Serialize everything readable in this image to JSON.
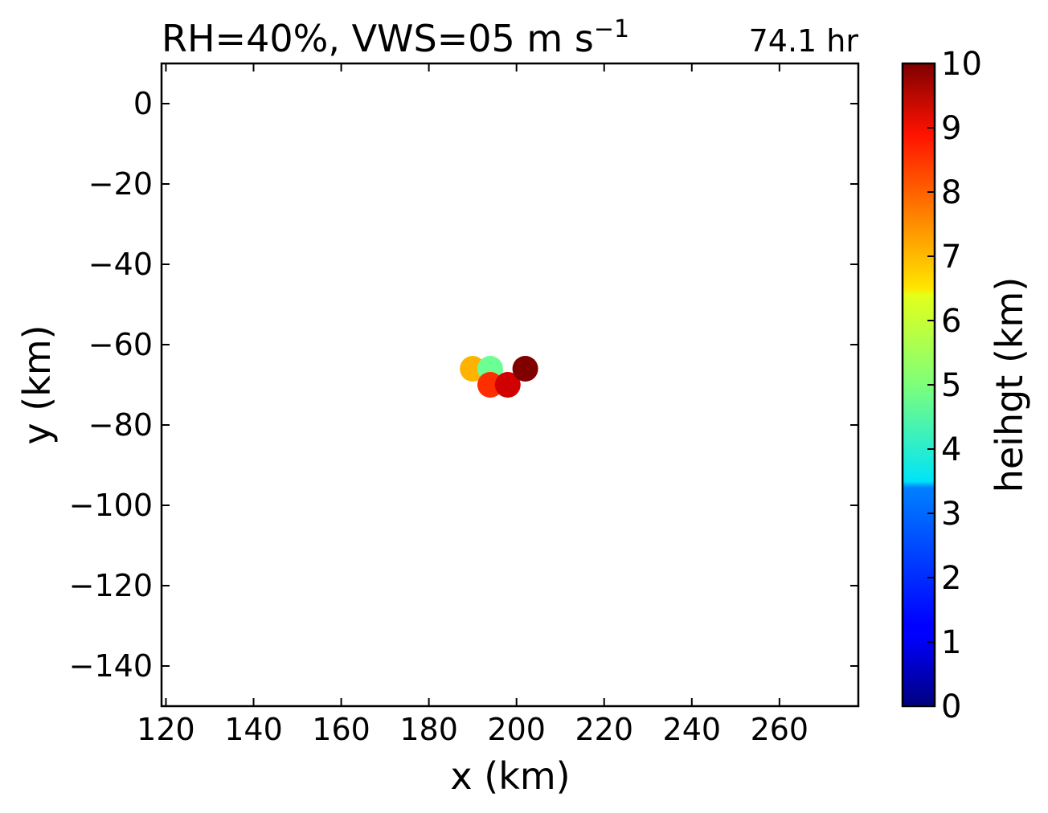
{
  "chart_data": {
    "type": "scatter",
    "title_main": "RH=40%, VWS=05 m s",
    "title_sup": "−1",
    "time_label": "74.1 hr",
    "time_label_color": "#0000ff",
    "xlabel": "x (km)",
    "ylabel": "y (km)",
    "xlim": [
      119,
      278
    ],
    "ylim": [
      -150,
      10
    ],
    "xticks": [
      120,
      140,
      160,
      180,
      200,
      220,
      240,
      260
    ],
    "xtick_labels": [
      "120",
      "140",
      "160",
      "180",
      "200",
      "220",
      "240",
      "260"
    ],
    "yticks": [
      0,
      -20,
      -40,
      -60,
      -80,
      -100,
      -120,
      -140
    ],
    "ytick_labels": [
      "0",
      "−20",
      "−40",
      "−60",
      "−80",
      "−100",
      "−120",
      "−140"
    ],
    "points": [
      {
        "x": 190,
        "y": -66,
        "height": 7.0
      },
      {
        "x": 194,
        "y": -66,
        "height": 4.8
      },
      {
        "x": 194,
        "y": -70,
        "height": 8.3
      },
      {
        "x": 198,
        "y": -70,
        "height": 9.2
      },
      {
        "x": 202,
        "y": -66,
        "height": 10.0
      }
    ],
    "colorbar": {
      "label": "heihgt (km)",
      "colormap": "jet",
      "range": [
        0,
        10
      ],
      "ticks": [
        0,
        1,
        2,
        3,
        4,
        5,
        6,
        7,
        8,
        9,
        10
      ],
      "tick_labels": [
        "0",
        "1",
        "2",
        "3",
        "4",
        "5",
        "6",
        "7",
        "8",
        "9",
        "10"
      ]
    },
    "grid": false,
    "legend": "none"
  }
}
